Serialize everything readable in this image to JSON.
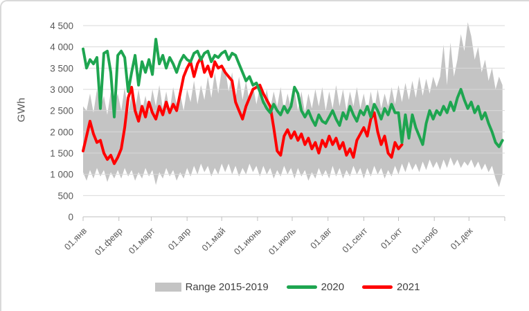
{
  "chart_data": {
    "type": "line",
    "title": "",
    "ylabel": "GWh",
    "ylim": [
      0,
      4500
    ],
    "y_tick_step": 500,
    "y_tick_labels": [
      "0",
      "500",
      "1 000",
      "1 500",
      "2 000",
      "2 500",
      "3 000",
      "3 500",
      "4 000",
      "4 500"
    ],
    "x_tick_days": [
      1,
      32,
      60,
      91,
      121,
      152,
      182,
      213,
      244,
      274,
      305,
      335,
      366
    ],
    "x_tick_labels": [
      "01.янв",
      "01.февр",
      "01.март",
      "01.апр",
      "01.май",
      "01.июнь",
      "01.июль",
      "01.авг",
      "01.сент",
      "01.окт",
      "01.нояб",
      "01.дек"
    ],
    "days_in_year": 365,
    "sample_step_days": 3,
    "grid": true,
    "legend_position": "bottom",
    "colors": {
      "grid": "#D9D9D9",
      "axis": "#BFBFBF",
      "tick_text": "#595959",
      "legend_text": "#404040"
    },
    "series": [
      {
        "name": "Range 2015-2019",
        "type": "band",
        "color": "#C4C4C4",
        "high": [
          2600,
          2500,
          2900,
          2450,
          3000,
          2550,
          2850,
          2400,
          2950,
          2600,
          2900,
          2500,
          3050,
          2450,
          2900,
          2550,
          3000,
          2500,
          2850,
          2450,
          3000,
          2600,
          3100,
          2550,
          2950,
          2500,
          3050,
          2650,
          2900,
          2500,
          3000,
          2700,
          3200,
          2650,
          3100,
          2750,
          3300,
          2800,
          3400,
          2900,
          3450,
          3500,
          2950,
          3400,
          2800,
          3300,
          2750,
          3200,
          2700,
          3100,
          2650,
          3050,
          2600,
          3000,
          2550,
          2950,
          2600,
          3050,
          2500,
          2900,
          2550,
          3000,
          2500,
          2950,
          2450,
          2900,
          2550,
          3000,
          2600,
          3050,
          2500,
          2950,
          2550,
          3100,
          2600,
          3000,
          2500,
          2950,
          2600,
          3050,
          2550,
          2900,
          2450,
          2950,
          2500,
          3000,
          2550,
          2900,
          2600,
          3050,
          2650,
          3100,
          2700,
          3150,
          2750,
          3200,
          2800,
          3300,
          2850,
          3250,
          2900,
          3300,
          3050,
          3300,
          4050,
          3100,
          4100,
          3300,
          3700,
          4300,
          3900,
          4580,
          4250,
          3700,
          4000,
          3400,
          3700,
          3200,
          3500,
          3000,
          3300,
          3100
        ],
        "low": [
          1050,
          850,
          1100,
          900,
          1150,
          950,
          1100,
          820,
          1050,
          900,
          1100,
          900,
          1150,
          950,
          1100,
          850,
          1050,
          900,
          1150,
          950,
          1100,
          750,
          1050,
          900,
          1150,
          950,
          1100,
          850,
          1050,
          900,
          1150,
          950,
          1200,
          1000,
          1250,
          1050,
          1200,
          950,
          1150,
          1000,
          1250,
          1050,
          1250,
          1000,
          1200,
          950,
          1150,
          1000,
          1250,
          1050,
          1200,
          950,
          1200,
          1000,
          1150,
          900,
          1100,
          950,
          1200,
          1000,
          1150,
          900,
          1150,
          950,
          1100,
          850,
          1050,
          900,
          1150,
          950,
          1100,
          900,
          1200,
          950,
          1150,
          900,
          1100,
          950,
          1200,
          1000,
          1150,
          900,
          1150,
          950,
          1200,
          1000,
          1150,
          900,
          1100,
          950,
          1200,
          1000,
          1250,
          1050,
          1300,
          1100,
          1250,
          1050,
          1300,
          1100,
          1350,
          1150,
          1300,
          1100,
          1350,
          1150,
          1400,
          1200,
          1350,
          1150,
          1300,
          1200,
          1350,
          1150,
          1300,
          1100,
          1250,
          1050,
          1200,
          900,
          700,
          1000
        ]
      },
      {
        "name": "2020",
        "type": "line",
        "color": "#1EA550",
        "values": [
          3950,
          3500,
          3700,
          3600,
          3750,
          2550,
          3850,
          3900,
          3400,
          2350,
          3800,
          3900,
          3750,
          2950,
          3400,
          3800,
          3100,
          3650,
          3400,
          3700,
          3350,
          4180,
          3600,
          3800,
          3500,
          3750,
          3600,
          3400,
          3650,
          3800,
          3700,
          3650,
          3850,
          3900,
          3700,
          3850,
          3900,
          3650,
          3800,
          3750,
          3850,
          3900,
          3700,
          3850,
          3800,
          3600,
          3400,
          3200,
          3300,
          3100,
          3150,
          2950,
          2700,
          2550,
          2450,
          2650,
          2500,
          2400,
          2600,
          2450,
          2600,
          3050,
          2900,
          2500,
          2350,
          2500,
          2300,
          2150,
          2400,
          2250,
          2200,
          2350,
          2500,
          2300,
          2150,
          2450,
          2300,
          2600,
          2400,
          2250,
          2500,
          2400,
          2600,
          2350,
          2650,
          2500,
          2300,
          2550,
          2400,
          2650,
          2450,
          2450,
          1750,
          2400,
          1850,
          2400,
          2100,
          1900,
          1700,
          2200,
          2500,
          2300,
          2500,
          2400,
          2600,
          2450,
          2700,
          2500,
          2800,
          3000,
          2750,
          2550,
          2700,
          2450,
          2600,
          2300,
          2450,
          2200,
          2000,
          1750,
          1650,
          1800
        ]
      },
      {
        "name": "2021",
        "type": "line",
        "color": "#FF0000",
        "values": [
          1550,
          1900,
          2250,
          1950,
          1750,
          1800,
          1500,
          1350,
          1450,
          1250,
          1400,
          1600,
          2100,
          2800,
          3050,
          2500,
          2250,
          2600,
          2350,
          2700,
          2450,
          2300,
          2600,
          2400,
          2700,
          2450,
          2650,
          2500,
          2900,
          3300,
          3500,
          3650,
          3300,
          3600,
          3750,
          3400,
          3550,
          3300,
          3650,
          3500,
          3550,
          3400,
          3300,
          3200,
          2700,
          2500,
          2300,
          2600,
          2800,
          3000,
          3050,
          3100,
          2900,
          2750,
          2600,
          2100,
          1550,
          1450,
          1900,
          2050,
          1850,
          2000,
          1800,
          1950,
          1700,
          1850,
          1600,
          1750,
          1500,
          1800,
          1650,
          1900,
          1700,
          1850,
          1600,
          1750,
          1450,
          1600,
          1400,
          1800,
          1950,
          2100,
          1900,
          2300,
          2450,
          2000,
          1700,
          1900,
          1500,
          1400,
          1750,
          1600,
          1700
        ]
      }
    ]
  },
  "legend": {
    "range_label": "Range 2015-2019",
    "label_2020": "2020",
    "label_2021": "2021"
  }
}
